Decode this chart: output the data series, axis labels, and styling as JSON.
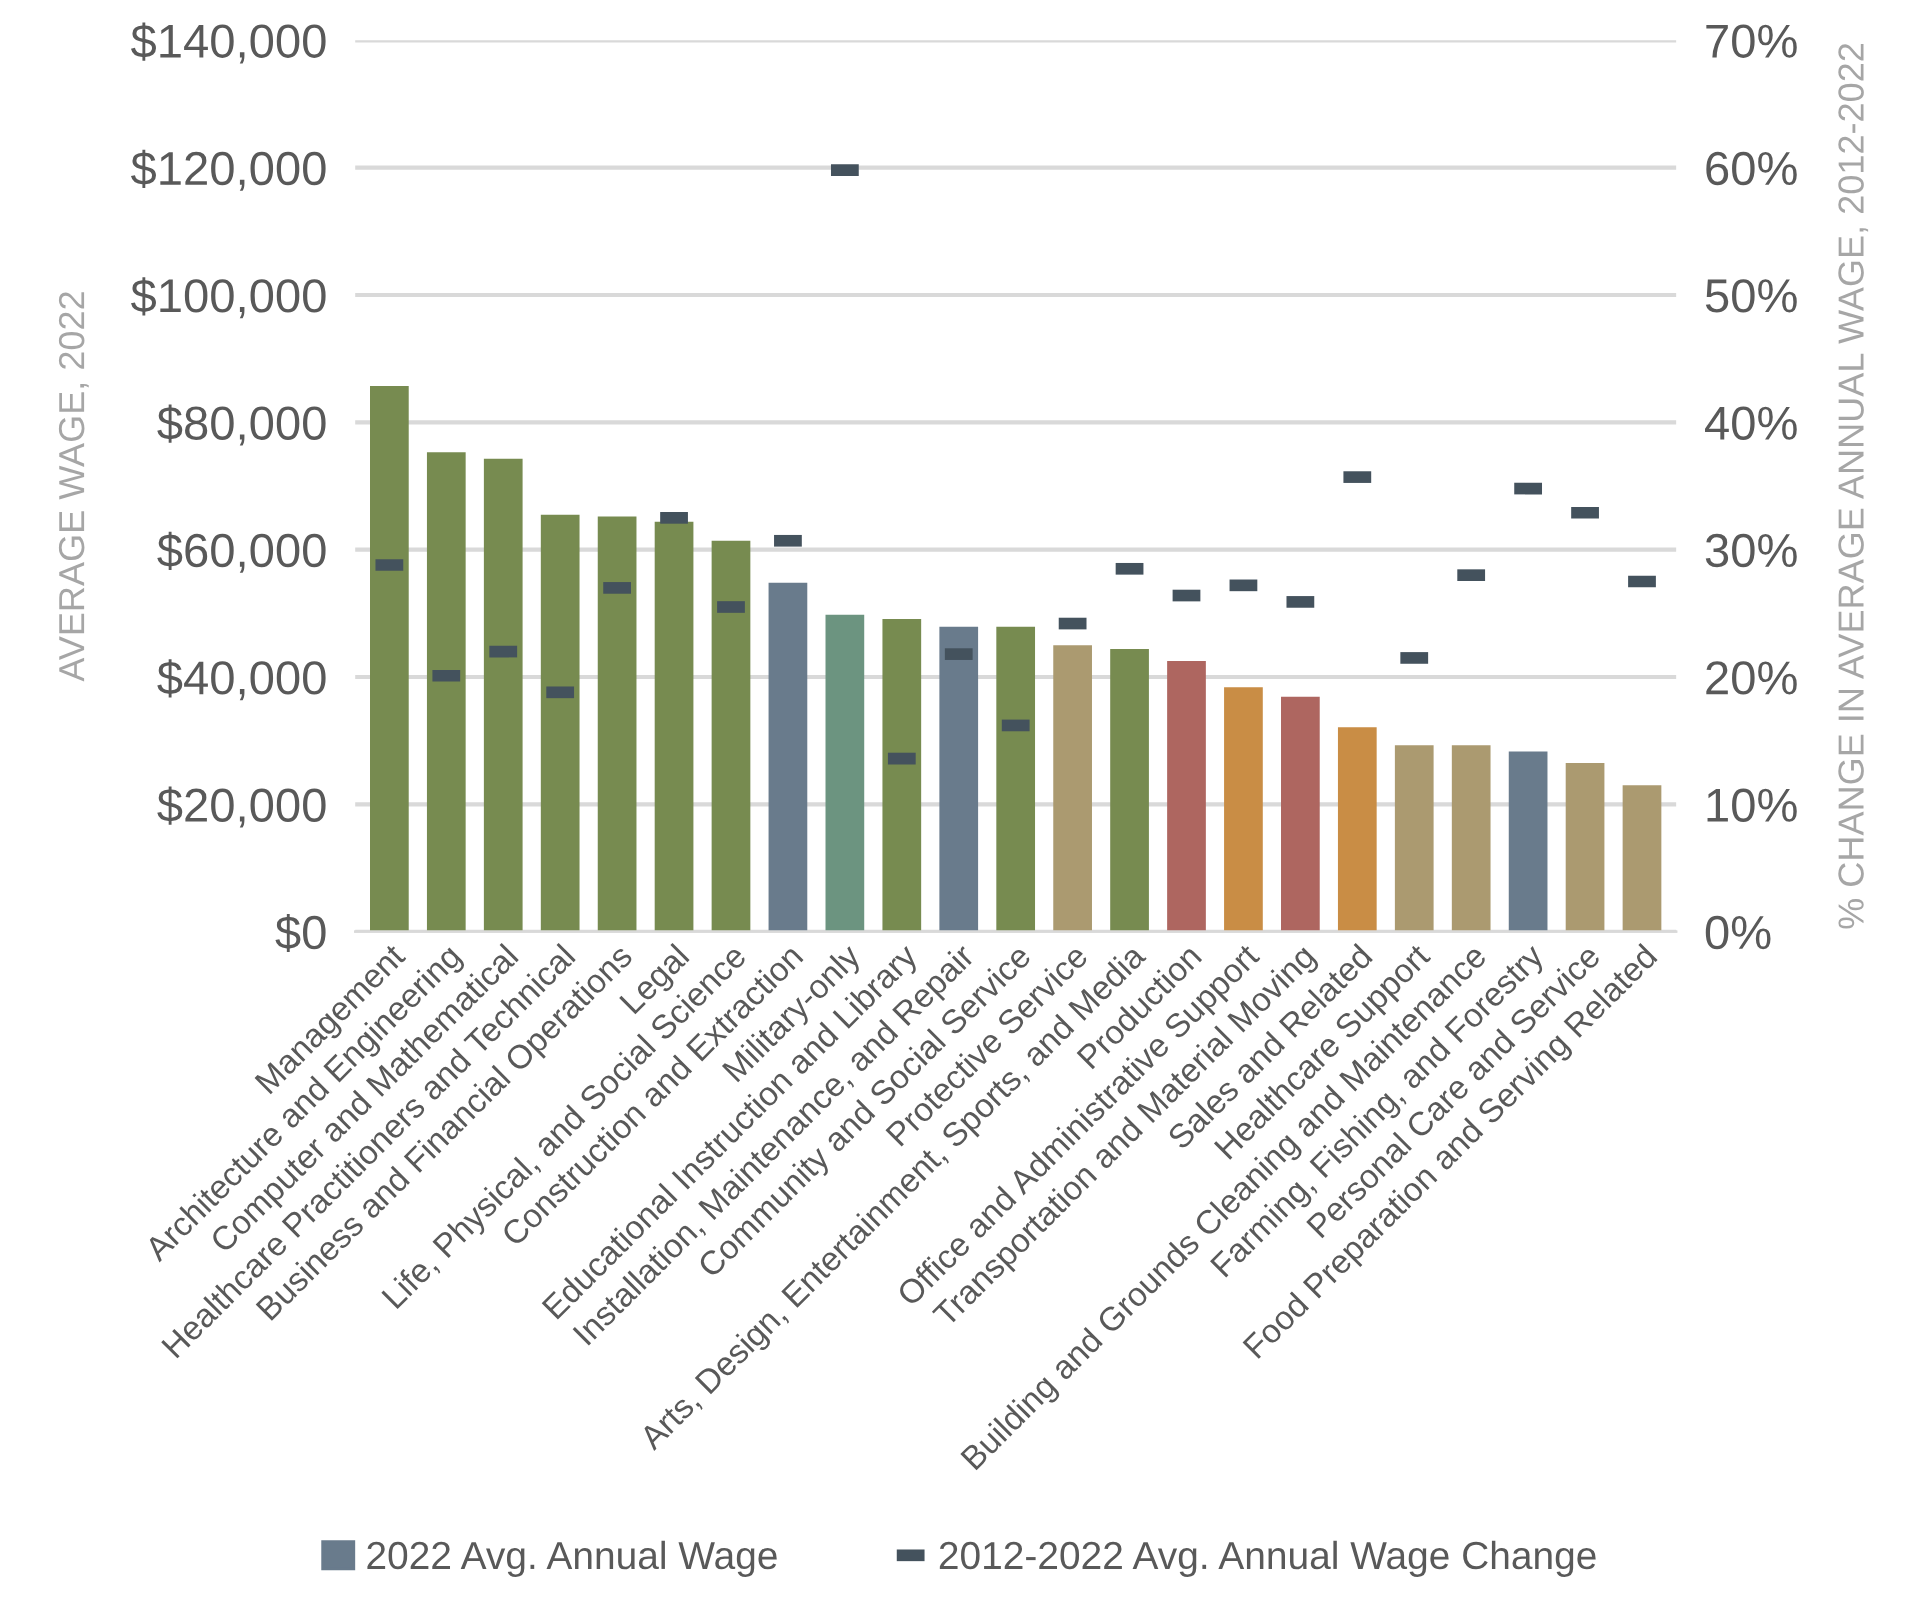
{
  "chart_data": {
    "type": "bar",
    "xlabel": null,
    "ylabel": "AVERAGE WAGE, 2022",
    "y2label": "% CHANGE IN AVERAGE ANNUAL WAGE, 2012-2022",
    "categories": [
      "Management",
      "Architecture and Engineering",
      "Computer and Mathematical",
      "Healthcare Practitioners and Technical",
      "Business and Financial Operations",
      "Legal",
      "Life, Physical, and Social Science",
      "Construction and Extraction",
      "Military-only",
      "Educational Instruction and Library",
      "Installation, Maintenance, and Repair",
      "Community and Social Service",
      "Protective Service",
      "Arts, Design, Entertainment, Sports, and Media",
      "Production",
      "Office and Administrative Support",
      "Transportation and Material Moving",
      "Sales and Related",
      "Healthcare Support",
      "Building and Grounds Cleaning and Maintenance",
      "Farming, Fishing, and Forestry",
      "Personal Care and Service",
      "Food Preparation and Serving Related"
    ],
    "series": [
      {
        "name": "2022 Avg. Annual Wage",
        "color": "#697b8c",
        "values": [
          85700,
          75300,
          74300,
          65500,
          65200,
          64400,
          61400,
          54800,
          49800,
          49100,
          47900,
          47900,
          45000,
          44400,
          42500,
          38400,
          36900,
          32100,
          29300,
          29300,
          28300,
          26500,
          23000
        ],
        "colors": [
          "#778b50",
          "#778b50",
          "#778b50",
          "#778b50",
          "#778b50",
          "#778b50",
          "#778b50",
          "#697b8c",
          "#6c9480",
          "#778b50",
          "#697b8c",
          "#778b50",
          "#ab9a70",
          "#778b50",
          "#ae6660",
          "#c98d45",
          "#ae6660",
          "#c98d45",
          "#ab9a70",
          "#ab9a70",
          "#697b8c",
          "#ab9a70",
          "#ab9a70"
        ]
      },
      {
        "name": "2012-2022 Avg. Annual Wage Change",
        "type": "scatter",
        "axis": "y2",
        "color": "#44525d",
        "values": [
          28.8,
          20.1,
          22.0,
          18.8,
          27.0,
          32.5,
          25.5,
          30.7,
          59.8,
          13.6,
          21.8,
          16.2,
          24.2,
          28.5,
          26.4,
          27.2,
          25.9,
          35.7,
          21.5,
          28.0,
          34.8,
          32.9,
          27.5
        ]
      }
    ],
    "ylim": [
      0,
      140000
    ],
    "yticks": [
      {
        "value": 0,
        "label": "$0"
      },
      {
        "value": 20000,
        "label": "$20,000"
      },
      {
        "value": 40000,
        "label": "$40,000"
      },
      {
        "value": 60000,
        "label": "$60,000"
      },
      {
        "value": 80000,
        "label": "$80,000"
      },
      {
        "value": 100000,
        "label": "$100,000"
      },
      {
        "value": 120000,
        "label": "$120,000"
      },
      {
        "value": 140000,
        "label": "$140,000"
      }
    ],
    "y2lim": [
      0,
      70
    ],
    "y2ticks": [
      {
        "value": 0,
        "label": "0%"
      },
      {
        "value": 10,
        "label": "10%"
      },
      {
        "value": 20,
        "label": "20%"
      },
      {
        "value": 30,
        "label": "30%"
      },
      {
        "value": 40,
        "label": "40%"
      },
      {
        "value": 50,
        "label": "50%"
      },
      {
        "value": 60,
        "label": "60%"
      },
      {
        "value": 70,
        "label": "70%"
      }
    ],
    "grid": "y",
    "legend": "bottom"
  }
}
